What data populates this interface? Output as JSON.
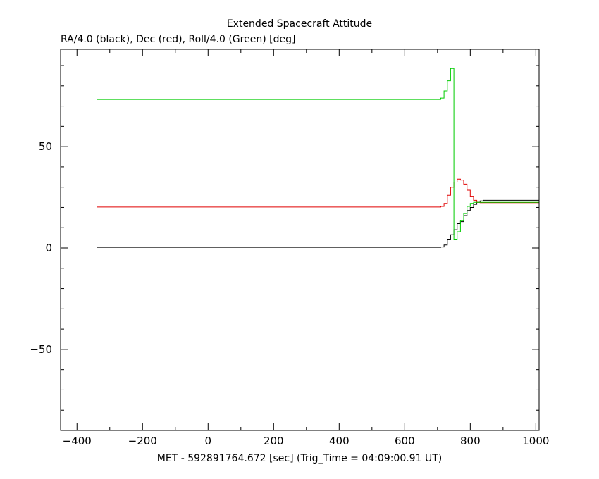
{
  "chart_data": {
    "type": "line",
    "title": "Extended Spacecraft Attitude",
    "ylabel": "RA/4.0 (black), Dec (red), Roll/4.0 (Green) [deg]",
    "xlabel": "MET - 592891764.672 [sec] (Trig_Time = 04:09:00.91 UT)",
    "xlim": [
      -450,
      1010
    ],
    "ylim": [
      -90,
      98
    ],
    "x_major_ticks": [
      -400,
      -200,
      0,
      200,
      400,
      600,
      800,
      1000
    ],
    "x_tick_labels": [
      "−400",
      "−200",
      "0",
      "200",
      "400",
      "600",
      "800",
      "1000"
    ],
    "x_minor_step": 100,
    "y_major_ticks": [
      -50,
      0,
      50
    ],
    "y_tick_labels": [
      "−50",
      "0",
      "50"
    ],
    "y_minor_step": 10,
    "grid": false,
    "series": [
      {
        "color": "#000000",
        "step": true,
        "points": [
          [
            -340,
            0.3
          ],
          [
            700,
            0.3
          ],
          [
            710,
            0.5
          ],
          [
            720,
            1.5
          ],
          [
            730,
            4
          ],
          [
            740,
            6.5
          ],
          [
            750,
            9
          ],
          [
            760,
            12
          ],
          [
            770,
            13
          ],
          [
            780,
            16
          ],
          [
            790,
            18.5
          ],
          [
            800,
            20
          ],
          [
            810,
            21.5
          ],
          [
            820,
            22.5
          ],
          [
            830,
            23.2
          ],
          [
            840,
            23.5
          ],
          [
            1010,
            23.5
          ]
        ]
      },
      {
        "color": "#e00000",
        "step": true,
        "points": [
          [
            -340,
            20.2
          ],
          [
            700,
            20.2
          ],
          [
            710,
            20.5
          ],
          [
            720,
            22
          ],
          [
            730,
            26
          ],
          [
            740,
            30
          ],
          [
            750,
            32.5
          ],
          [
            760,
            34
          ],
          [
            770,
            33.5
          ],
          [
            780,
            31.5
          ],
          [
            790,
            28.5
          ],
          [
            800,
            25.5
          ],
          [
            810,
            23.5
          ],
          [
            820,
            22.5
          ],
          [
            830,
            22.3
          ],
          [
            1010,
            22.3
          ]
        ]
      },
      {
        "color": "#00cc00",
        "step": true,
        "points": [
          [
            -340,
            73.3
          ],
          [
            700,
            73.3
          ],
          [
            710,
            74
          ],
          [
            720,
            77.5
          ],
          [
            730,
            82.5
          ],
          [
            740,
            88.5
          ],
          [
            750,
            4
          ],
          [
            760,
            8
          ],
          [
            770,
            13.5
          ],
          [
            780,
            17
          ],
          [
            790,
            20.5
          ],
          [
            800,
            22
          ],
          [
            810,
            22.5
          ],
          [
            1010,
            22.5
          ]
        ]
      }
    ]
  }
}
